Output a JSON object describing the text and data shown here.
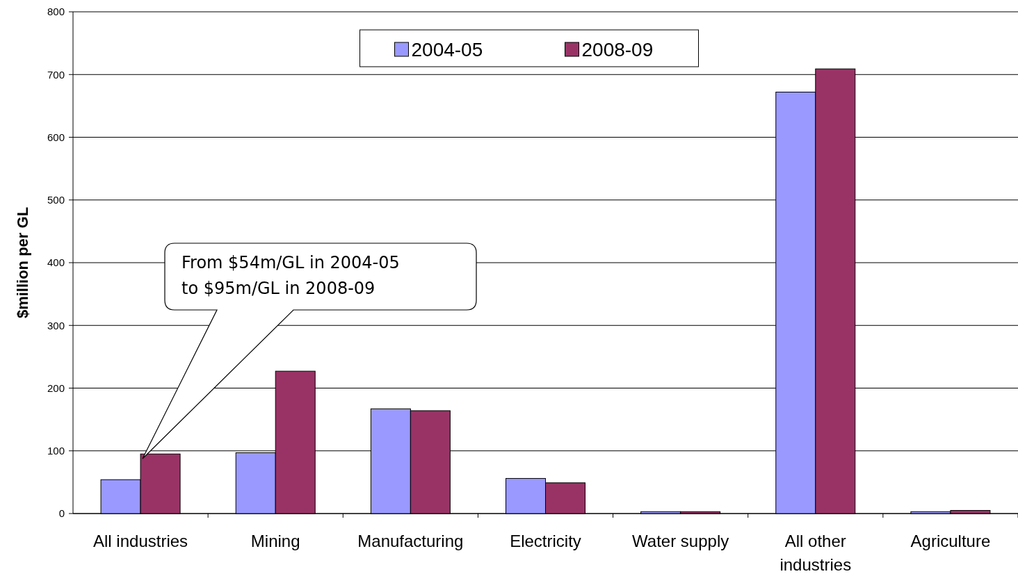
{
  "chart_data": {
    "type": "bar",
    "ylabel": "$million per GL",
    "categories": [
      "All industries",
      "Mining",
      "Manufacturing",
      "Electricity",
      "Water supply",
      "All other industries",
      "Agriculture"
    ],
    "series": [
      {
        "name": "2004-05",
        "color": "#9999ff",
        "values": [
          54,
          97,
          167,
          56,
          3,
          672,
          3
        ]
      },
      {
        "name": "2008-09",
        "color": "#993366",
        "values": [
          95,
          227,
          164,
          49,
          3,
          709,
          5
        ]
      }
    ],
    "ylim": [
      0,
      800
    ],
    "yticks": [
      0,
      100,
      200,
      300,
      400,
      500,
      600,
      700,
      800
    ],
    "grid": "y",
    "legend": "top",
    "annotations": [
      "From $54m/GL in 2004-05\nto $95m/GL in 2008-09"
    ]
  }
}
